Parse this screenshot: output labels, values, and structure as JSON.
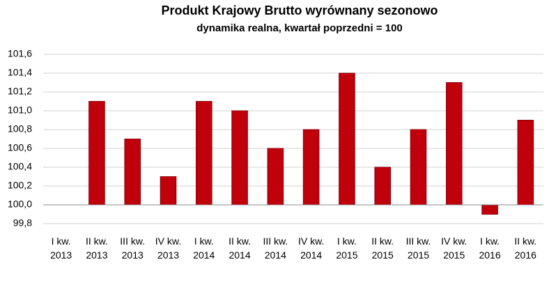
{
  "chart_data": {
    "type": "bar",
    "title": "Produkt Krajowy Brutto wyrównany sezonowo",
    "subtitle": "dynamika realna, kwartał poprzedni = 100",
    "categories": [
      "I kw. 2013",
      "II kw. 2013",
      "III kw. 2013",
      "IV kw. 2013",
      "I kw. 2014",
      "II kw. 2014",
      "III kw. 2014",
      "IV kw. 2014",
      "I kw. 2015",
      "II kw. 2015",
      "III kw. 2015",
      "IV kw. 2015",
      "I kw. 2016",
      "II kw. 2016"
    ],
    "values": [
      100.0,
      101.1,
      100.7,
      100.3,
      101.1,
      101.0,
      100.6,
      100.8,
      101.4,
      100.4,
      100.8,
      101.3,
      99.9,
      100.9
    ],
    "color": "#c0000b",
    "baseline": 100,
    "ylim": [
      99.8,
      101.6
    ],
    "yticks": [
      {
        "value": 99.8,
        "label": "99,8"
      },
      {
        "value": 100.0,
        "label": "100,0"
      },
      {
        "value": 100.2,
        "label": "100,2"
      },
      {
        "value": 100.4,
        "label": "100,4"
      },
      {
        "value": 100.6,
        "label": "100,6"
      },
      {
        "value": 100.8,
        "label": "100,8"
      },
      {
        "value": 101.0,
        "label": "101,0"
      },
      {
        "value": 101.2,
        "label": "101,2"
      },
      {
        "value": 101.4,
        "label": "101,4"
      },
      {
        "value": 101.6,
        "label": "101,6"
      }
    ],
    "grid": true
  }
}
